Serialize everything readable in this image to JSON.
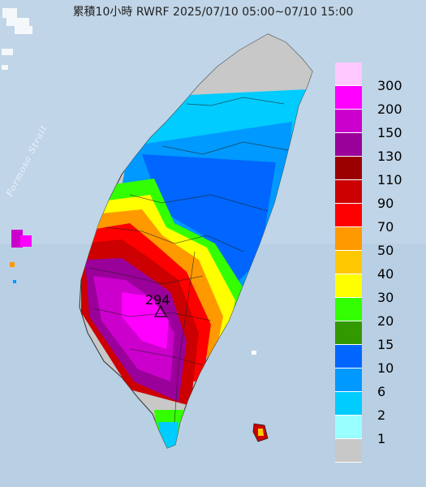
{
  "title": "累積10小時 RWRF 2025/07/10 05:00~07/10 15:00",
  "sea_label": "Formosa Strait",
  "max_rain_value": "294",
  "legend": {
    "items": [
      {
        "label": "300",
        "color": "#ffc8ff"
      },
      {
        "label": "200",
        "color": "#ff00ff"
      },
      {
        "label": "150",
        "color": "#cc00cc"
      },
      {
        "label": "130",
        "color": "#9a009a"
      },
      {
        "label": "110",
        "color": "#9a0000"
      },
      {
        "label": "90",
        "color": "#cc0000"
      },
      {
        "label": "70",
        "color": "#ff0000"
      },
      {
        "label": "50",
        "color": "#ff9900"
      },
      {
        "label": "40",
        "color": "#ffc800"
      },
      {
        "label": "30",
        "color": "#ffff00"
      },
      {
        "label": "20",
        "color": "#33ff00"
      },
      {
        "label": "15",
        "color": "#339900"
      },
      {
        "label": "10",
        "color": "#0066ff"
      },
      {
        "label": "6",
        "color": "#0099ff"
      },
      {
        "label": "2",
        "color": "#00ccff"
      },
      {
        "label": "1",
        "color": "#99ffff"
      },
      {
        "label": "",
        "color": "#c8c8c8"
      }
    ]
  }
}
